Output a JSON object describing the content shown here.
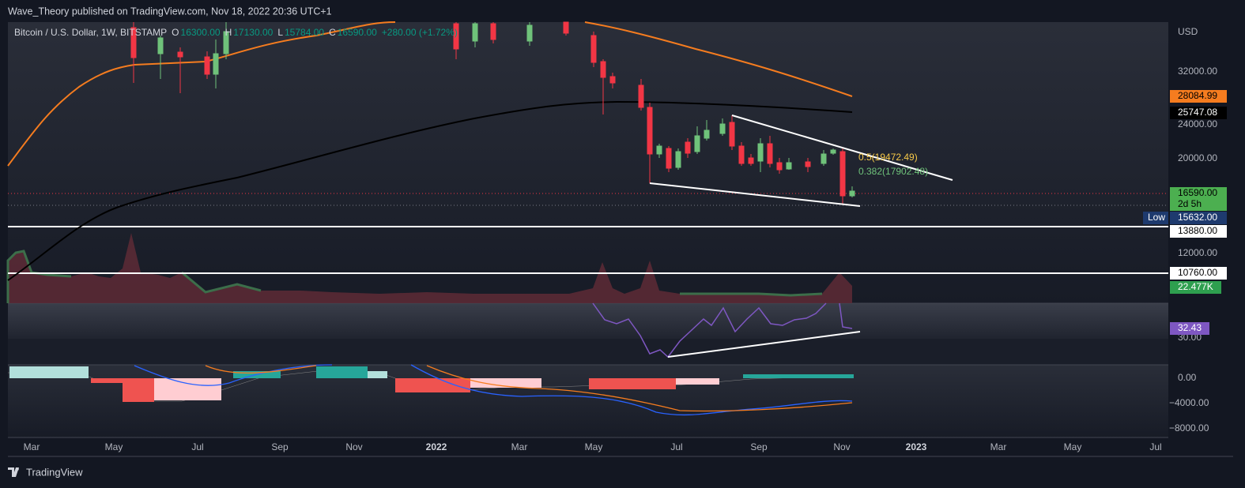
{
  "header": {
    "byline": "Wave_Theory published on TradingView.com, Nov 18, 2022 20:36 UTC+1"
  },
  "legend": {
    "symbol": "Bitcoin / U.S. Dollar, 1W, BITSTAMP",
    "o_label": "O",
    "open": "16300.00",
    "h_label": "H",
    "high": "17130.00",
    "l_label": "L",
    "low": "15784.00",
    "c_label": "C",
    "close": "16590.00",
    "change": "+280.00 (+1.72%)"
  },
  "fib": {
    "level_a": "0.5(19472.49)",
    "level_b": "0.382(17902.48)"
  },
  "price_axis": {
    "currency": "USD",
    "labels": [
      "32000.00",
      "24000.00",
      "20000.00",
      "12000.00"
    ],
    "rsi_label": "30.00",
    "macd_labels": [
      "0.00",
      "−4000.00",
      "−8000.00"
    ]
  },
  "badges": {
    "ma_orange": "28084.99",
    "ma_black": "25747.08",
    "last": "16590.00",
    "countdown": "2d 5h",
    "low_tag": "Low",
    "low": "15632.00",
    "level_1": "13880.00",
    "level_2": "10760.00",
    "volume": "22.477K",
    "rsi": "32.43"
  },
  "time_axis": [
    "Mar",
    "May",
    "Jul",
    "Sep",
    "Nov",
    "2022",
    "Mar",
    "May",
    "Jul",
    "Sep",
    "Nov",
    "2023",
    "Mar",
    "May",
    "Jul"
  ],
  "footer": {
    "brand": "TradingView"
  }
}
